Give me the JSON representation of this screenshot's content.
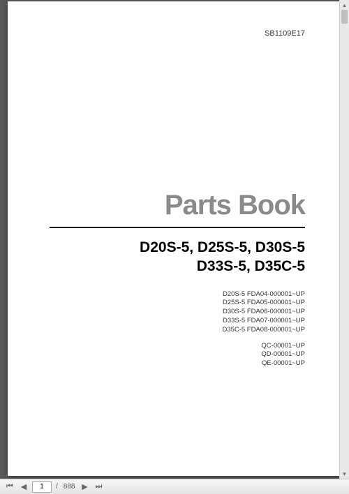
{
  "document": {
    "code": "SB1109E17",
    "title": "Parts Book",
    "title_color": "#8a8a8a",
    "title_fontsize": 40,
    "models_line1": "D20S-5, D25S-5, D30S-5",
    "models_line2": "D33S-5, D35C-5",
    "models_fontsize": 21,
    "serials": [
      "D20S-5  FDA04-000001~UP",
      "D25S-5  FDA05-000001~UP",
      "D30S-5  FDA06-000001~UP",
      "D33S-5  FDA07-000001~UP",
      "D35C-5  FDA08-000001~UP"
    ],
    "extra_serials": [
      "QC-00001~UP",
      "QD-00001~UP",
      "QE-00001~UP"
    ],
    "serial_fontsize": 9.5,
    "divider_color": "#000000",
    "page_bg": "#ffffff"
  },
  "viewer": {
    "bg_color": "#5a5a5a",
    "toolbar_bg_top": "#f7f7f7",
    "toolbar_bg_bottom": "#e4e4e4",
    "current_page": "1",
    "total_pages": "888",
    "page_sep": "/",
    "first_icon": "⏮",
    "prev_icon": "◀",
    "next_icon": "▶",
    "last_icon": "⏭"
  },
  "scrollbar": {
    "track_color": "#e9e9e9",
    "thumb_color": "#bfbfbf",
    "up_icon": "▲",
    "down_icon": "▼"
  }
}
